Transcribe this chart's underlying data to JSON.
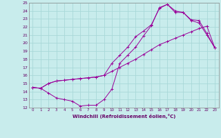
{
  "xlabel": "Windchill (Refroidissement éolien,°C)",
  "bg_color": "#c8ecec",
  "grid_color": "#a8d8d8",
  "line_color": "#990099",
  "xlim": [
    -0.5,
    23.5
  ],
  "ylim": [
    12,
    25
  ],
  "xticks": [
    0,
    1,
    2,
    3,
    4,
    5,
    6,
    7,
    8,
    9,
    10,
    11,
    12,
    13,
    14,
    15,
    16,
    17,
    18,
    19,
    20,
    21,
    22,
    23
  ],
  "yticks": [
    12,
    13,
    14,
    15,
    16,
    17,
    18,
    19,
    20,
    21,
    22,
    23,
    24,
    25
  ],
  "curve1_x": [
    0,
    1,
    2,
    3,
    4,
    5,
    6,
    7,
    8,
    9,
    10,
    11,
    12,
    13,
    14,
    15,
    16,
    17,
    18,
    19,
    20,
    21,
    22,
    23
  ],
  "curve1_y": [
    14.5,
    14.4,
    13.8,
    13.2,
    13.0,
    12.8,
    12.2,
    12.3,
    12.3,
    13.0,
    14.3,
    17.5,
    18.5,
    19.5,
    20.9,
    22.2,
    24.4,
    24.8,
    24.0,
    23.8,
    22.8,
    22.5,
    21.0,
    19.4
  ],
  "curve2_x": [
    0,
    1,
    2,
    3,
    4,
    5,
    6,
    7,
    8,
    9,
    10,
    11,
    12,
    13,
    14,
    15,
    16,
    17,
    18,
    19,
    20,
    21,
    22,
    23
  ],
  "curve2_y": [
    14.5,
    14.4,
    15.0,
    15.3,
    15.4,
    15.5,
    15.6,
    15.7,
    15.8,
    16.0,
    16.5,
    17.0,
    17.5,
    18.0,
    18.6,
    19.2,
    19.8,
    20.2,
    20.6,
    21.0,
    21.4,
    21.8,
    22.1,
    19.4
  ],
  "curve3_x": [
    0,
    1,
    2,
    3,
    4,
    5,
    6,
    7,
    8,
    9,
    10,
    11,
    12,
    13,
    14,
    15,
    16,
    17,
    18,
    19,
    20,
    21,
    22,
    23
  ],
  "curve3_y": [
    14.5,
    14.4,
    15.0,
    15.3,
    15.4,
    15.5,
    15.6,
    15.7,
    15.8,
    16.0,
    17.5,
    18.5,
    19.5,
    20.8,
    21.5,
    22.3,
    24.3,
    24.8,
    23.8,
    23.8,
    22.9,
    22.8,
    21.2,
    19.4
  ]
}
